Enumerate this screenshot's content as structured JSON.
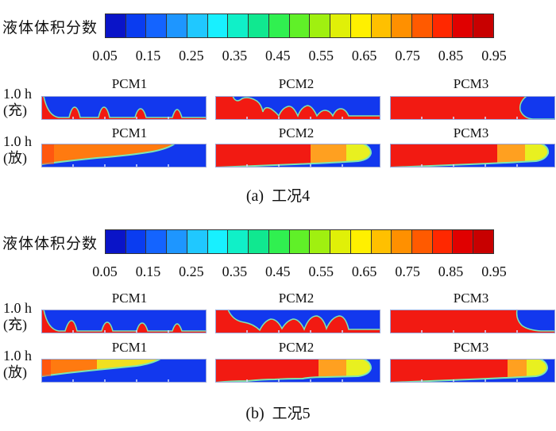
{
  "colorbar": {
    "title": "液体体积分数",
    "ticks": [
      "0.05",
      "0.15",
      "0.25",
      "0.35",
      "0.45",
      "0.55",
      "0.65",
      "0.75",
      "0.85",
      "0.95"
    ],
    "colors": [
      "#0a14c8",
      "#0a3cf0",
      "#1464ff",
      "#1e96ff",
      "#20c8ff",
      "#18f0ff",
      "#10f0c8",
      "#10e890",
      "#30f050",
      "#60f028",
      "#a0f010",
      "#e0f008",
      "#fff000",
      "#ffc000",
      "#ff9000",
      "#ff5a00",
      "#ff2800",
      "#e00000",
      "#c80000"
    ]
  },
  "colors": {
    "liquid": "#f21a12",
    "solid": "#1238ee",
    "interface": "#7ee6b0"
  },
  "panels": [
    {
      "caption": {
        "tag": "(a)",
        "text": "工况",
        "num": "4"
      },
      "rows": [
        {
          "label": "1.0 h\n(充)",
          "cells": [
            {
              "name": "PCM1",
              "liquid_fraction": 0.15
            },
            {
              "name": "PCM2",
              "liquid_fraction": 0.65
            },
            {
              "name": "PCM3",
              "liquid_fraction": 0.85
            }
          ]
        },
        {
          "label": "1.0 h\n(放)",
          "cells": [
            {
              "name": "PCM1",
              "liquid_fraction": 0.3
            },
            {
              "name": "PCM2",
              "liquid_fraction": 0.75
            },
            {
              "name": "PCM3",
              "liquid_fraction": 0.8
            }
          ]
        }
      ]
    },
    {
      "caption": {
        "tag": "(b)",
        "text": "工况",
        "num": "5"
      },
      "rows": [
        {
          "label": "1.0 h\n(充)",
          "cells": [
            {
              "name": "PCM1",
              "liquid_fraction": 0.15
            },
            {
              "name": "PCM2",
              "liquid_fraction": 0.6
            },
            {
              "name": "PCM3",
              "liquid_fraction": 0.85
            }
          ]
        },
        {
          "label": "1.0 h\n(放)",
          "cells": [
            {
              "name": "PCM1",
              "liquid_fraction": 0.25
            },
            {
              "name": "PCM2",
              "liquid_fraction": 0.7
            },
            {
              "name": "PCM3",
              "liquid_fraction": 0.75
            }
          ]
        }
      ]
    }
  ]
}
